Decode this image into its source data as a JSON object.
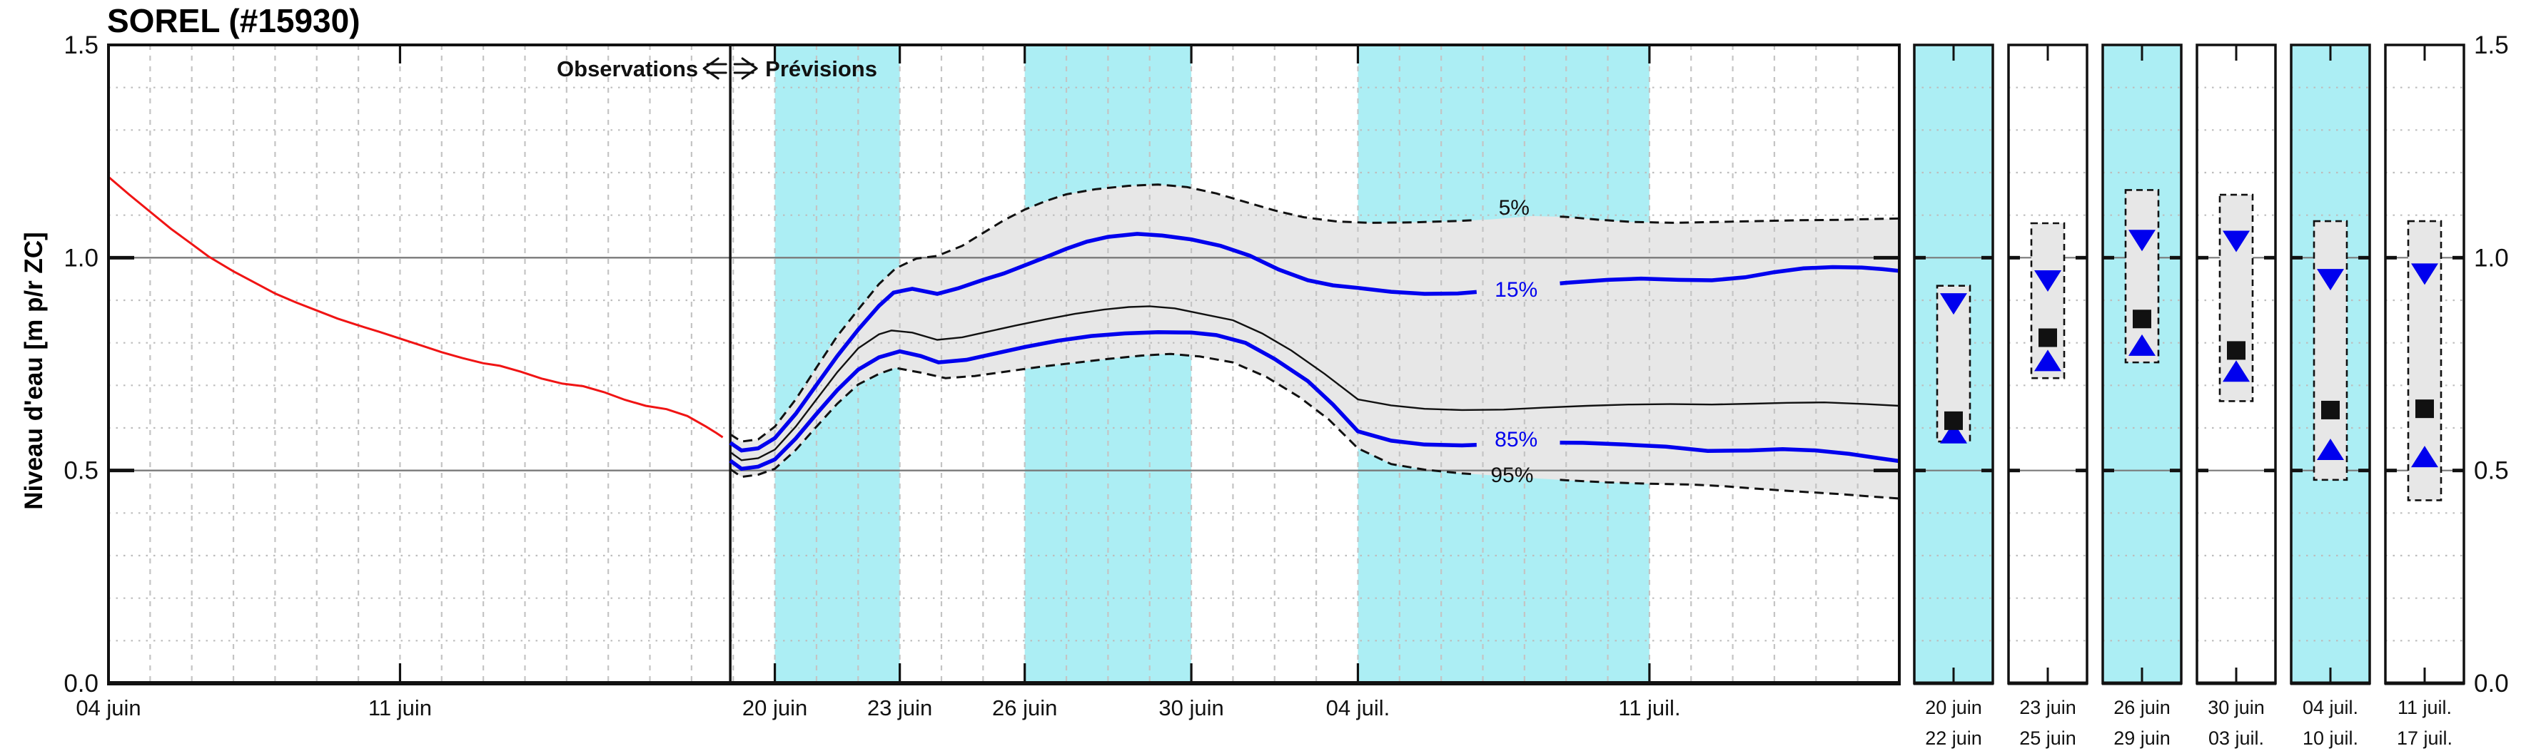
{
  "title": "SOREL (#15930)",
  "y_axis": {
    "label": "Niveau d'eau [m p/r ZC]",
    "ticks": [
      {
        "value": 1.5,
        "label": "1.5"
      },
      {
        "value": 1.0,
        "label": "1.0"
      },
      {
        "value": 0.5,
        "label": "0.5"
      },
      {
        "value": 0.0,
        "label": "0.0"
      }
    ],
    "minor_step": 0.1
  },
  "header": {
    "observations_label": "Observations",
    "previsions_label": "Prévisions"
  },
  "colors": {
    "cyan_band": "#aceef4",
    "fan_fill": "#e7e7e7",
    "blue": "#0000ee",
    "red": "#f01414",
    "grid_dash": "#c4c4c4",
    "grid_dot": "#bdbdbd",
    "ref_line": "#7a7a7a",
    "black": "#111111"
  },
  "chart_data": {
    "type": "line",
    "title": "SOREL (#15930)",
    "ylabel": "Niveau d'eau [m p/r ZC]",
    "ylim": [
      0,
      1.5
    ],
    "xlim_days": [
      0,
      43
    ],
    "x_epoch": "04 juin",
    "divider_day": 14.93,
    "x_ticks": [
      {
        "day": 0,
        "label": "04 juin"
      },
      {
        "day": 7,
        "label": "11 juin"
      },
      {
        "day": 16,
        "label": "20 juin"
      },
      {
        "day": 19,
        "label": "23 juin"
      },
      {
        "day": 22,
        "label": "26 juin"
      },
      {
        "day": 26,
        "label": "30 juin"
      },
      {
        "day": 30,
        "label": "04 juil."
      },
      {
        "day": 37,
        "label": "11 juil."
      }
    ],
    "weekend_bands_days": [
      [
        16,
        19
      ],
      [
        22,
        26
      ],
      [
        30,
        37
      ]
    ],
    "reference_lines": [
      0.5,
      1.0
    ],
    "series": [
      {
        "name": "observed",
        "color": "red",
        "style": "solid",
        "width": 3,
        "points": [
          [
            0,
            1.19
          ],
          [
            0.5,
            1.148
          ],
          [
            1,
            1.108
          ],
          [
            1.5,
            1.068
          ],
          [
            2,
            1.032
          ],
          [
            2.4,
            1.003
          ],
          [
            3,
            0.968
          ],
          [
            3.5,
            0.942
          ],
          [
            4,
            0.916
          ],
          [
            4.5,
            0.895
          ],
          [
            5,
            0.876
          ],
          [
            5.5,
            0.857
          ],
          [
            6,
            0.841
          ],
          [
            6.5,
            0.826
          ],
          [
            7,
            0.81
          ],
          [
            7.5,
            0.794
          ],
          [
            8,
            0.778
          ],
          [
            8.5,
            0.764
          ],
          [
            9,
            0.752
          ],
          [
            9.4,
            0.746
          ],
          [
            9.9,
            0.732
          ],
          [
            10.4,
            0.716
          ],
          [
            10.9,
            0.704
          ],
          [
            11.4,
            0.698
          ],
          [
            11.9,
            0.684
          ],
          [
            12.4,
            0.666
          ],
          [
            12.9,
            0.652
          ],
          [
            13.4,
            0.644
          ],
          [
            13.9,
            0.628
          ],
          [
            14.35,
            0.603
          ],
          [
            14.6,
            0.588
          ],
          [
            14.75,
            0.578
          ]
        ]
      },
      {
        "name": "5%",
        "color": "black",
        "style": "dashed",
        "width": 3,
        "label_gap_days": [
          32.85,
          34.85
        ],
        "points": [
          [
            14.93,
            0.585
          ],
          [
            15.2,
            0.568
          ],
          [
            15.6,
            0.573
          ],
          [
            16,
            0.603
          ],
          [
            16.5,
            0.667
          ],
          [
            17,
            0.742
          ],
          [
            17.5,
            0.816
          ],
          [
            18,
            0.878
          ],
          [
            18.5,
            0.938
          ],
          [
            18.9,
            0.975
          ],
          [
            19.4,
            0.998
          ],
          [
            19.9,
            1.004
          ],
          [
            20.5,
            1.028
          ],
          [
            21,
            1.058
          ],
          [
            21.5,
            1.088
          ],
          [
            22,
            1.113
          ],
          [
            22.5,
            1.133
          ],
          [
            23,
            1.149
          ],
          [
            23.7,
            1.161
          ],
          [
            24.5,
            1.169
          ],
          [
            25.2,
            1.172
          ],
          [
            25.9,
            1.166
          ],
          [
            26.6,
            1.151
          ],
          [
            27.3,
            1.131
          ],
          [
            28,
            1.111
          ],
          [
            28.7,
            1.095
          ],
          [
            29.5,
            1.085
          ],
          [
            30.3,
            1.082
          ],
          [
            31.3,
            1.083
          ],
          [
            32.3,
            1.086
          ],
          [
            33.2,
            1.09
          ],
          [
            34.2,
            1.098
          ],
          [
            35,
            1.096
          ],
          [
            35.8,
            1.089
          ],
          [
            36.6,
            1.084
          ],
          [
            37.6,
            1.082
          ],
          [
            38.6,
            1.084
          ],
          [
            39.6,
            1.086
          ],
          [
            40.6,
            1.088
          ],
          [
            41.6,
            1.089
          ],
          [
            42.4,
            1.091
          ],
          [
            43,
            1.092
          ]
        ]
      },
      {
        "name": "15%",
        "color": "blue",
        "style": "solid",
        "width": 5.5,
        "label_gap_days": [
          32.85,
          34.85
        ],
        "points": [
          [
            14.93,
            0.565
          ],
          [
            15.2,
            0.547
          ],
          [
            15.6,
            0.552
          ],
          [
            16,
            0.576
          ],
          [
            16.5,
            0.633
          ],
          [
            17,
            0.701
          ],
          [
            17.5,
            0.769
          ],
          [
            18,
            0.831
          ],
          [
            18.5,
            0.887
          ],
          [
            18.85,
            0.918
          ],
          [
            19.3,
            0.927
          ],
          [
            19.9,
            0.915
          ],
          [
            20.4,
            0.928
          ],
          [
            21,
            0.948
          ],
          [
            21.5,
            0.963
          ],
          [
            22,
            0.982
          ],
          [
            22.5,
            1.001
          ],
          [
            23,
            1.021
          ],
          [
            23.5,
            1.038
          ],
          [
            24,
            1.049
          ],
          [
            24.7,
            1.056
          ],
          [
            25.3,
            1.052
          ],
          [
            26,
            1.043
          ],
          [
            26.7,
            1.028
          ],
          [
            27.4,
            1.005
          ],
          [
            28.1,
            0.972
          ],
          [
            28.8,
            0.947
          ],
          [
            29.4,
            0.935
          ],
          [
            30,
            0.929
          ],
          [
            30.8,
            0.92
          ],
          [
            31.6,
            0.915
          ],
          [
            32.4,
            0.916
          ],
          [
            33.2,
            0.922
          ],
          [
            34.1,
            0.932
          ],
          [
            35,
            0.941
          ],
          [
            36,
            0.948
          ],
          [
            36.8,
            0.951
          ],
          [
            37.7,
            0.948
          ],
          [
            38.5,
            0.947
          ],
          [
            39.3,
            0.954
          ],
          [
            40,
            0.966
          ],
          [
            40.7,
            0.975
          ],
          [
            41.4,
            0.978
          ],
          [
            42.1,
            0.977
          ],
          [
            42.6,
            0.973
          ],
          [
            43,
            0.969
          ]
        ]
      },
      {
        "name": "median",
        "color": "black",
        "style": "solid",
        "width": 2.4,
        "points": [
          [
            14.93,
            0.543
          ],
          [
            15.2,
            0.524
          ],
          [
            15.6,
            0.529
          ],
          [
            16,
            0.549
          ],
          [
            16.5,
            0.603
          ],
          [
            17,
            0.667
          ],
          [
            17.5,
            0.731
          ],
          [
            18,
            0.787
          ],
          [
            18.5,
            0.82
          ],
          [
            18.8,
            0.829
          ],
          [
            19.3,
            0.824
          ],
          [
            19.9,
            0.807
          ],
          [
            20.5,
            0.813
          ],
          [
            21.1,
            0.826
          ],
          [
            21.8,
            0.841
          ],
          [
            22.5,
            0.855
          ],
          [
            23.2,
            0.868
          ],
          [
            23.9,
            0.878
          ],
          [
            24.5,
            0.884
          ],
          [
            25,
            0.886
          ],
          [
            25.6,
            0.881
          ],
          [
            26.3,
            0.867
          ],
          [
            27,
            0.853
          ],
          [
            27.7,
            0.822
          ],
          [
            28.4,
            0.782
          ],
          [
            29.2,
            0.727
          ],
          [
            30,
            0.667
          ],
          [
            30.8,
            0.653
          ],
          [
            31.6,
            0.645
          ],
          [
            32.5,
            0.642
          ],
          [
            33.5,
            0.643
          ],
          [
            34.5,
            0.648
          ],
          [
            35.5,
            0.652
          ],
          [
            36.5,
            0.655
          ],
          [
            37.5,
            0.656
          ],
          [
            38.5,
            0.655
          ],
          [
            39.5,
            0.657
          ],
          [
            40.3,
            0.659
          ],
          [
            41.2,
            0.66
          ],
          [
            42.2,
            0.656
          ],
          [
            43,
            0.652
          ]
        ]
      },
      {
        "name": "85%",
        "color": "blue",
        "style": "solid",
        "width": 5.5,
        "label_gap_days": [
          32.85,
          34.85
        ],
        "points": [
          [
            14.93,
            0.523
          ],
          [
            15.2,
            0.504
          ],
          [
            15.6,
            0.509
          ],
          [
            16,
            0.526
          ],
          [
            16.5,
            0.575
          ],
          [
            17,
            0.633
          ],
          [
            17.5,
            0.689
          ],
          [
            18,
            0.737
          ],
          [
            18.5,
            0.766
          ],
          [
            19,
            0.78
          ],
          [
            19.5,
            0.769
          ],
          [
            19.93,
            0.754
          ],
          [
            20.6,
            0.76
          ],
          [
            21.3,
            0.775
          ],
          [
            22,
            0.79
          ],
          [
            22.8,
            0.805
          ],
          [
            23.6,
            0.816
          ],
          [
            24.4,
            0.822
          ],
          [
            25.2,
            0.825
          ],
          [
            26,
            0.824
          ],
          [
            26.6,
            0.818
          ],
          [
            27.3,
            0.8
          ],
          [
            28,
            0.762
          ],
          [
            28.8,
            0.71
          ],
          [
            29.4,
            0.655
          ],
          [
            30,
            0.592
          ],
          [
            30.8,
            0.57
          ],
          [
            31.6,
            0.561
          ],
          [
            32.5,
            0.559
          ],
          [
            33.4,
            0.562
          ],
          [
            34.4,
            0.566
          ],
          [
            35.4,
            0.565
          ],
          [
            36.4,
            0.561
          ],
          [
            37.4,
            0.556
          ],
          [
            38.4,
            0.546
          ],
          [
            39.4,
            0.547
          ],
          [
            40.2,
            0.55
          ],
          [
            41,
            0.547
          ],
          [
            41.8,
            0.539
          ],
          [
            42.5,
            0.529
          ],
          [
            43,
            0.522
          ]
        ]
      },
      {
        "name": "95%",
        "color": "black",
        "style": "dashed",
        "width": 3,
        "label_gap_days": [
          32.85,
          34.85
        ],
        "points": [
          [
            14.93,
            0.503
          ],
          [
            15.2,
            0.485
          ],
          [
            15.6,
            0.49
          ],
          [
            16,
            0.504
          ],
          [
            16.5,
            0.548
          ],
          [
            17,
            0.603
          ],
          [
            17.5,
            0.657
          ],
          [
            18,
            0.702
          ],
          [
            18.5,
            0.727
          ],
          [
            18.9,
            0.741
          ],
          [
            19.5,
            0.73
          ],
          [
            20.1,
            0.717
          ],
          [
            20.8,
            0.722
          ],
          [
            21.6,
            0.733
          ],
          [
            22.4,
            0.744
          ],
          [
            23.2,
            0.753
          ],
          [
            24,
            0.762
          ],
          [
            24.8,
            0.77
          ],
          [
            25.5,
            0.774
          ],
          [
            26.2,
            0.768
          ],
          [
            27,
            0.754
          ],
          [
            27.8,
            0.72
          ],
          [
            28.6,
            0.672
          ],
          [
            29.3,
            0.62
          ],
          [
            30,
            0.552
          ],
          [
            30.8,
            0.515
          ],
          [
            31.6,
            0.502
          ],
          [
            32.5,
            0.493
          ],
          [
            33.3,
            0.488
          ],
          [
            34.2,
            0.482
          ],
          [
            35,
            0.477
          ],
          [
            36,
            0.472
          ],
          [
            37,
            0.469
          ],
          [
            38,
            0.467
          ],
          [
            38.8,
            0.463
          ],
          [
            39.6,
            0.457
          ],
          [
            40.5,
            0.451
          ],
          [
            41.5,
            0.445
          ],
          [
            42.3,
            0.439
          ],
          [
            43,
            0.434
          ]
        ]
      }
    ],
    "band_between": [
      "5%",
      "95%"
    ],
    "percentile_labels": [
      {
        "text": "5%",
        "day": 33.75,
        "value": 1.118,
        "color": "black"
      },
      {
        "text": "15%",
        "day": 33.8,
        "value": 0.925,
        "color": "blue"
      },
      {
        "text": "85%",
        "day": 33.8,
        "value": 0.573,
        "color": "blue"
      },
      {
        "text": "95%",
        "day": 33.7,
        "value": 0.489,
        "color": "black"
      }
    ],
    "panels": [
      {
        "date_start": "20 juin",
        "date_end": "22 juin",
        "shaded": true,
        "box_low": 0.568,
        "box_high": 0.934,
        "p15": 0.893,
        "median": 0.617,
        "p85": 0.587
      },
      {
        "date_start": "23 juin",
        "date_end": "25 juin",
        "shaded": false,
        "box_low": 0.717,
        "box_high": 1.081,
        "p15": 0.947,
        "median": 0.812,
        "p85": 0.757
      },
      {
        "date_start": "26 juin",
        "date_end": "29 juin",
        "shaded": true,
        "box_low": 0.754,
        "box_high": 1.159,
        "p15": 1.042,
        "median": 0.856,
        "p85": 0.793
      },
      {
        "date_start": "30 juin",
        "date_end": "03 juil.",
        "shaded": false,
        "box_low": 0.663,
        "box_high": 1.148,
        "p15": 1.04,
        "median": 0.782,
        "p85": 0.732
      },
      {
        "date_start": "04 juil.",
        "date_end": "10 juil.",
        "shaded": true,
        "box_low": 0.478,
        "box_high": 1.086,
        "p15": 0.95,
        "median": 0.642,
        "p85": 0.548
      },
      {
        "date_start": "11 juil.",
        "date_end": "17 juil.",
        "shaded": false,
        "box_low": 0.43,
        "box_high": 1.086,
        "p15": 0.963,
        "median": 0.645,
        "p85": 0.531
      }
    ],
    "right_axis_ticks": [
      {
        "value": 1.5,
        "label": "1.5"
      },
      {
        "value": 1.0,
        "label": "1.0"
      },
      {
        "value": 0.5,
        "label": "0.5"
      },
      {
        "value": 0.0,
        "label": "0.0"
      }
    ]
  }
}
